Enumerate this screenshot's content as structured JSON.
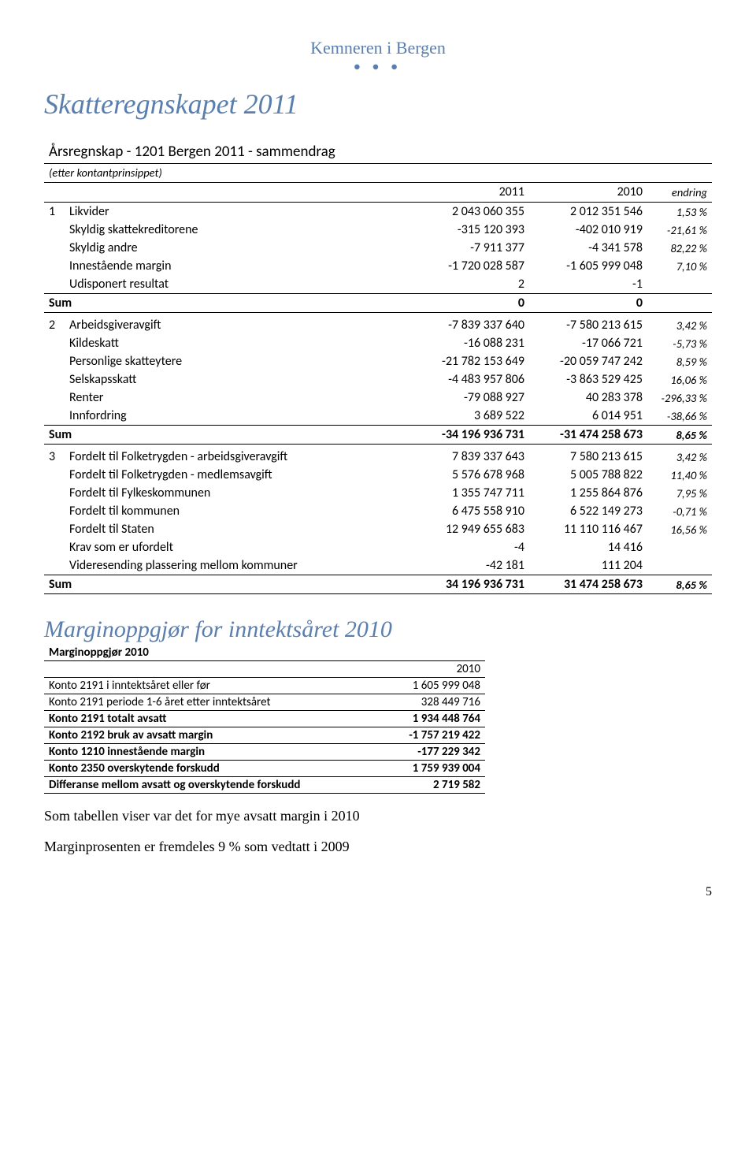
{
  "header": {
    "org": "Kemneren i Bergen",
    "dots": "● ● ●"
  },
  "title_h1": "Skatteregnskapet 2011",
  "table1": {
    "title": "Årsregnskap - 1201 Bergen 2011 - sammendrag",
    "subtitle": "(etter kontantprinsippet)",
    "col_2011": "2011",
    "col_2010": "2010",
    "col_endring": "endring",
    "sections": [
      {
        "idx": "1",
        "rows": [
          {
            "label": "Likvider",
            "v1": "2 043 060 355",
            "v2": "2 012 351 546",
            "p": "1,53 %"
          },
          {
            "label": "Skyldig skattekreditorene",
            "v1": "-315 120 393",
            "v2": "-402 010 919",
            "p": "-21,61 %"
          },
          {
            "label": "Skyldig andre",
            "v1": "-7 911 377",
            "v2": "-4 341 578",
            "p": "82,22 %"
          },
          {
            "label": "Innestående margin",
            "v1": "-1 720 028 587",
            "v2": "-1 605 999 048",
            "p": "7,10 %"
          },
          {
            "label": "Udisponert resultat",
            "v1": "2",
            "v2": "-1",
            "p": ""
          }
        ],
        "sum": {
          "label": "Sum",
          "v1": "0",
          "v2": "0",
          "p": ""
        }
      },
      {
        "idx": "2",
        "rows": [
          {
            "label": "Arbeidsgiveravgift",
            "v1": "-7 839 337 640",
            "v2": "-7 580 213 615",
            "p": "3,42 %"
          },
          {
            "label": "Kildeskatt",
            "v1": "-16 088 231",
            "v2": "-17 066 721",
            "p": "-5,73 %"
          },
          {
            "label": "Personlige skatteytere",
            "v1": "-21 782 153 649",
            "v2": "-20 059 747 242",
            "p": "8,59 %"
          },
          {
            "label": "Selskapsskatt",
            "v1": "-4 483 957 806",
            "v2": "-3 863 529 425",
            "p": "16,06 %"
          },
          {
            "label": "Renter",
            "v1": "-79 088 927",
            "v2": "40 283 378",
            "p": "-296,33 %"
          },
          {
            "label": "Innfordring",
            "v1": "3 689 522",
            "v2": "6 014 951",
            "p": "-38,66 %"
          }
        ],
        "sum": {
          "label": "Sum",
          "v1": "-34 196 936 731",
          "v2": "-31 474 258 673",
          "p": "8,65 %"
        }
      },
      {
        "idx": "3",
        "rows": [
          {
            "label": "Fordelt til Folketrygden - arbeidsgiveravgift",
            "v1": "7 839 337 643",
            "v2": "7 580 213 615",
            "p": "3,42 %"
          },
          {
            "label": "Fordelt til Folketrygden - medlemsavgift",
            "v1": "5 576 678 968",
            "v2": "5 005 788 822",
            "p": "11,40 %"
          },
          {
            "label": "Fordelt til Fylkeskommunen",
            "v1": "1 355 747 711",
            "v2": "1 255 864 876",
            "p": "7,95 %"
          },
          {
            "label": "Fordelt til kommunen",
            "v1": "6 475 558 910",
            "v2": "6 522 149 273",
            "p": "-0,71 %"
          },
          {
            "label": "Fordelt til Staten",
            "v1": "12 949 655 683",
            "v2": "11 110 116 467",
            "p": "16,56 %"
          },
          {
            "label": "Krav som er ufordelt",
            "v1": "-4",
            "v2": "14 416",
            "p": ""
          },
          {
            "label": "Videresending plassering mellom kommuner",
            "v1": "-42 181",
            "v2": "111 204",
            "p": ""
          }
        ],
        "sum": {
          "label": "Sum",
          "v1": "34 196 936 731",
          "v2": "31 474 258 673",
          "p": "8,65 %"
        }
      }
    ]
  },
  "title_h2": "Marginoppgjør for inntektsåret 2010",
  "table2": {
    "title": "Marginoppgjør 2010",
    "col_year": "2010",
    "rows": [
      {
        "bold": false,
        "label": "Konto 2191 i inntektsåret eller før",
        "val": "1 605 999 048"
      },
      {
        "bold": false,
        "label": "Konto 2191 periode 1-6 året etter inntektsåret",
        "val": "328 449 716"
      },
      {
        "bold": true,
        "label": "Konto 2191 totalt avsatt",
        "val": "1 934 448 764"
      },
      {
        "bold": true,
        "label": "Konto 2192 bruk av avsatt margin",
        "val": "-1 757 219 422"
      },
      {
        "bold": true,
        "label": "Konto 1210 innestående margin",
        "val": "-177 229 342"
      },
      {
        "bold": true,
        "label": "Konto 2350 overskytende forskudd",
        "val": "1 759 939 004"
      },
      {
        "bold": true,
        "label": "Differanse mellom avsatt og overskytende forskudd",
        "val": "2 719 582"
      }
    ]
  },
  "body1": "Som tabellen viser var det for mye avsatt margin i 2010",
  "body2": "Marginprosenten er fremdeles 9 % som vedtatt i 2009",
  "pagenum": "5"
}
